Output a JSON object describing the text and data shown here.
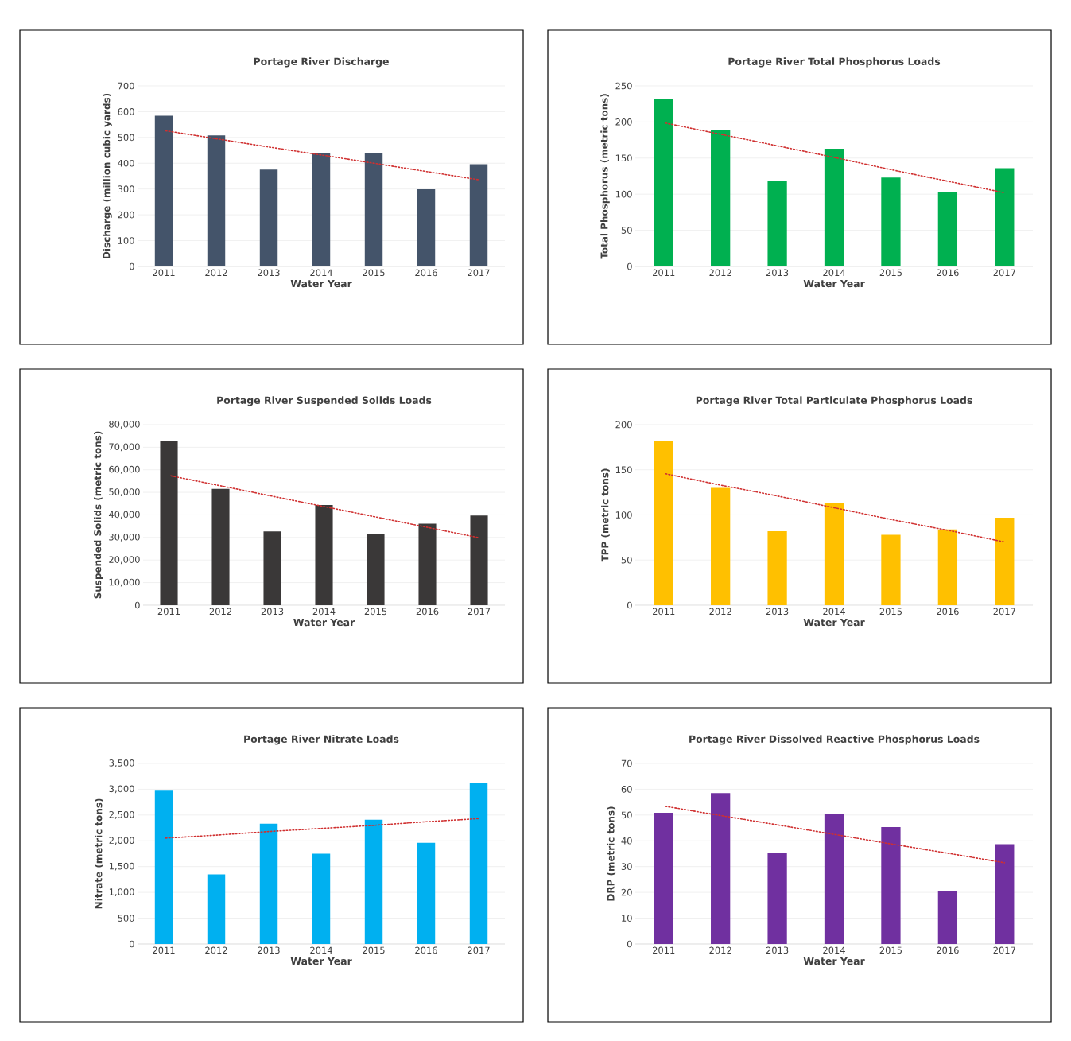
{
  "chart_data": [
    {
      "type": "bar",
      "title": "Portage River Discharge",
      "xlabel": "Water Year",
      "ylabel": "Discharge (million cubic yards)",
      "categories": [
        "2011",
        "2012",
        "2013",
        "2014",
        "2015",
        "2016",
        "2017"
      ],
      "grid": "y",
      "ylim": [
        0,
        700
      ],
      "yticks": [
        0,
        100,
        200,
        300,
        400,
        500,
        600,
        700
      ],
      "series": [
        {
          "color": "#44546a",
          "values": [
            584,
            508,
            375,
            441,
            441,
            299,
            396
          ]
        },
        {
          "type": "line",
          "line_style": "dotted",
          "color": "#d03030",
          "values": [
            527,
            495,
            463,
            432,
            400,
            368,
            336
          ]
        }
      ]
    },
    {
      "type": "bar",
      "title": "Portage River Total Phosphorus Loads",
      "xlabel": "Water Year",
      "ylabel": "Total Phosphorus (metric tons)",
      "categories": [
        "2011",
        "2012",
        "2013",
        "2014",
        "2015",
        "2016",
        "2017"
      ],
      "grid": "y",
      "ylim": [
        0,
        250
      ],
      "yticks": [
        0,
        50,
        100,
        150,
        200,
        250
      ],
      "series": [
        {
          "color": "#00b050",
          "values": [
            232,
            189,
            118,
            163,
            123,
            103,
            136
          ]
        },
        {
          "type": "line",
          "line_style": "dotted",
          "color": "#d03030",
          "values": [
            199,
            183,
            167,
            151,
            134,
            118,
            102
          ]
        }
      ]
    },
    {
      "type": "bar",
      "title": "Portage River Suspended Solids Loads",
      "xlabel": "Water Year",
      "ylabel": "Suspended Solids (metric tons)",
      "categories": [
        "2011",
        "2012",
        "2013",
        "2014",
        "2015",
        "2016",
        "2017"
      ],
      "grid": "y",
      "ylim": [
        0,
        80000
      ],
      "yticks": [
        0,
        {
          "value": 10000,
          "label": "10,000"
        },
        {
          "value": 20000,
          "label": "20,000"
        },
        {
          "value": 30000,
          "label": "30,000"
        },
        {
          "value": 40000,
          "label": "40,000"
        },
        {
          "value": 50000,
          "label": "50,000"
        },
        {
          "value": 60000,
          "label": "60,000"
        },
        {
          "value": 70000,
          "label": "70,000"
        },
        {
          "value": 80000,
          "label": "80,000"
        }
      ],
      "series": [
        {
          "color": "#3a3838",
          "values": [
            72600,
            51500,
            32700,
            44400,
            31400,
            36100,
            39700
          ]
        },
        {
          "type": "line",
          "line_style": "dotted",
          "color": "#d03030",
          "values": [
            57500,
            52900,
            48300,
            43700,
            39100,
            34500,
            29900
          ]
        }
      ]
    },
    {
      "type": "bar",
      "title": "Portage River Total Particulate Phosphorus Loads",
      "xlabel": "Water Year",
      "ylabel": "TPP (metric tons)",
      "categories": [
        "2011",
        "2012",
        "2013",
        "2014",
        "2015",
        "2016",
        "2017"
      ],
      "grid": "y",
      "ylim": [
        0,
        200
      ],
      "yticks": [
        0,
        50,
        100,
        150,
        200
      ],
      "series": [
        {
          "color": "#ffc000",
          "values": [
            182,
            130,
            82,
            113,
            78,
            84,
            97
          ]
        },
        {
          "type": "line",
          "line_style": "dotted",
          "color": "#d03030",
          "values": [
            146,
            133,
            121,
            108,
            95,
            83,
            70
          ]
        }
      ]
    },
    {
      "type": "bar",
      "title": "Portage River Nitrate Loads",
      "xlabel": "Water Year",
      "ylabel": "Nitrate (metric tons)",
      "categories": [
        "2011",
        "2012",
        "2013",
        "2014",
        "2015",
        "2016",
        "2017"
      ],
      "grid": "y",
      "ylim": [
        0,
        3500
      ],
      "yticks": [
        0,
        500,
        {
          "value": 1000,
          "label": "1,000"
        },
        {
          "value": 1500,
          "label": "1,500"
        },
        {
          "value": 2000,
          "label": "2,000"
        },
        {
          "value": 2500,
          "label": "2,500"
        },
        {
          "value": 3000,
          "label": "3,000"
        },
        {
          "value": 3500,
          "label": "3,500"
        }
      ],
      "series": [
        {
          "color": "#00b0f0",
          "values": [
            2970,
            1350,
            2330,
            1750,
            2410,
            1960,
            3120
          ]
        },
        {
          "type": "line",
          "line_style": "dotted",
          "color": "#d03030",
          "values": [
            2050,
            2110,
            2180,
            2240,
            2300,
            2370,
            2430
          ]
        }
      ]
    },
    {
      "type": "bar",
      "title": "Portage River Dissolved Reactive Phosphorus Loads",
      "xlabel": "Water Year",
      "ylabel": "DRP (metric tons)",
      "categories": [
        "2011",
        "2012",
        "2013",
        "2014",
        "2015",
        "2016",
        "2017"
      ],
      "grid": "y",
      "ylim": [
        0,
        70
      ],
      "yticks": [
        0,
        10,
        20,
        30,
        40,
        50,
        60,
        70
      ],
      "series": [
        {
          "color": "#7030a0",
          "values": [
            50.9,
            58.5,
            35.2,
            50.3,
            45.3,
            20.4,
            38.7
          ]
        },
        {
          "type": "line",
          "line_style": "dotted",
          "color": "#d03030",
          "values": [
            53.5,
            49.8,
            46.2,
            42.5,
            38.8,
            35.2,
            31.5
          ]
        }
      ]
    }
  ]
}
